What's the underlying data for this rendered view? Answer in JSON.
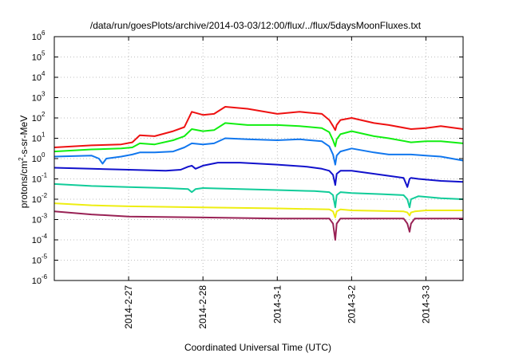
{
  "chart_data": {
    "type": "line",
    "title": "/data/run/goesPlots/archive/2014-03-03/12:00/flux/../flux/5daysMoonFluxes.txt",
    "xlabel": "Coordinated Universal Time (UTC)",
    "ylabel": {
      "base": "protons/cm",
      "sup": "2",
      "rest": "-s-sr-MeV"
    },
    "xlim": [
      0,
      5.5
    ],
    "ylim_log10": [
      -6,
      6
    ],
    "log_scale_y": true,
    "grid": true,
    "x_ticks": [
      {
        "x": 1,
        "label": "2014-2-27"
      },
      {
        "x": 2,
        "label": "2014-2-28"
      },
      {
        "x": 3,
        "label": "2014-3-1"
      },
      {
        "x": 4,
        "label": "2014-3-2"
      },
      {
        "x": 5,
        "label": "2014-3-3"
      }
    ],
    "y_ticks": [
      {
        "exp": 6,
        "label": "6"
      },
      {
        "exp": 5,
        "label": "5"
      },
      {
        "exp": 4,
        "label": "4"
      },
      {
        "exp": 3,
        "label": "3"
      },
      {
        "exp": 2,
        "label": "2"
      },
      {
        "exp": 1,
        "label": "1"
      },
      {
        "exp": 0,
        "label": "0"
      },
      {
        "exp": -1,
        "label": "-1"
      },
      {
        "exp": -2,
        "label": "-2"
      },
      {
        "exp": -3,
        "label": "-3"
      },
      {
        "exp": -4,
        "label": "-4"
      },
      {
        "exp": -5,
        "label": "-5"
      },
      {
        "exp": -6,
        "label": "-6"
      }
    ],
    "tick_base": "10",
    "series": [
      {
        "color": "#ee1111",
        "x": [
          0,
          0.5,
          0.9,
          1.05,
          1.15,
          1.35,
          1.6,
          1.75,
          1.85,
          2.0,
          2.15,
          2.3,
          2.6,
          3.0,
          3.3,
          3.6,
          3.7,
          3.75,
          3.78,
          3.8,
          3.85,
          4.0,
          4.3,
          4.5,
          4.8,
          5.0,
          5.2,
          5.5
        ],
        "log10": [
          0.55,
          0.65,
          0.7,
          0.8,
          1.15,
          1.1,
          1.35,
          1.55,
          2.3,
          2.15,
          2.2,
          2.55,
          2.45,
          2.2,
          2.3,
          2.2,
          1.9,
          1.6,
          1.4,
          1.65,
          1.9,
          2.0,
          1.75,
          1.65,
          1.45,
          1.5,
          1.6,
          1.45
        ]
      },
      {
        "color": "#11ee11",
        "x": [
          0,
          0.5,
          0.9,
          1.05,
          1.15,
          1.35,
          1.6,
          1.75,
          1.85,
          2.0,
          2.15,
          2.3,
          2.6,
          3.0,
          3.3,
          3.6,
          3.7,
          3.75,
          3.78,
          3.8,
          3.85,
          4.0,
          4.3,
          4.5,
          4.8,
          5.0,
          5.2,
          5.5
        ],
        "log10": [
          0.35,
          0.45,
          0.5,
          0.55,
          0.75,
          0.7,
          0.9,
          1.1,
          1.45,
          1.35,
          1.4,
          1.75,
          1.65,
          1.65,
          1.6,
          1.5,
          1.3,
          0.9,
          0.6,
          0.95,
          1.2,
          1.35,
          1.1,
          1.0,
          0.8,
          0.85,
          0.85,
          0.75
        ]
      },
      {
        "color": "#1177ee",
        "x": [
          0,
          0.5,
          0.6,
          0.65,
          0.7,
          0.9,
          1.05,
          1.15,
          1.35,
          1.6,
          1.75,
          1.85,
          2.0,
          2.15,
          2.3,
          2.6,
          3.0,
          3.3,
          3.6,
          3.7,
          3.75,
          3.78,
          3.8,
          3.85,
          4.0,
          4.3,
          4.5,
          4.8,
          5.0,
          5.2,
          5.5
        ],
        "log10": [
          0.1,
          0.15,
          0.0,
          -0.25,
          0.0,
          0.1,
          0.2,
          0.3,
          0.3,
          0.35,
          0.55,
          0.75,
          0.7,
          0.75,
          1.0,
          0.95,
          0.9,
          0.95,
          0.85,
          0.6,
          0.2,
          -0.3,
          0.15,
          0.35,
          0.5,
          0.3,
          0.2,
          0.2,
          0.15,
          0.1,
          -0.1
        ]
      },
      {
        "color": "#1111cc",
        "x": [
          0,
          0.5,
          1.0,
          1.5,
          1.7,
          1.8,
          1.85,
          1.9,
          2.0,
          2.2,
          2.5,
          3.0,
          3.4,
          3.6,
          3.7,
          3.75,
          3.78,
          3.8,
          3.85,
          4.0,
          4.4,
          4.7,
          4.75,
          4.78,
          4.8,
          4.9,
          5.2,
          5.5
        ],
        "log10": [
          -0.45,
          -0.5,
          -0.55,
          -0.6,
          -0.55,
          -0.4,
          -0.35,
          -0.5,
          -0.35,
          -0.2,
          -0.2,
          -0.3,
          -0.4,
          -0.5,
          -0.6,
          -0.8,
          -1.3,
          -0.75,
          -0.6,
          -0.6,
          -0.8,
          -0.95,
          -1.4,
          -1.0,
          -0.95,
          -1.0,
          -1.1,
          -1.15
        ]
      },
      {
        "color": "#11cc99",
        "x": [
          0,
          0.5,
          1.0,
          1.5,
          1.8,
          1.85,
          1.9,
          2.0,
          2.5,
          3.0,
          3.5,
          3.7,
          3.75,
          3.78,
          3.8,
          3.85,
          4.0,
          4.4,
          4.7,
          4.75,
          4.78,
          4.8,
          4.9,
          5.2,
          5.5
        ],
        "log10": [
          -1.25,
          -1.35,
          -1.4,
          -1.45,
          -1.5,
          -1.65,
          -1.5,
          -1.45,
          -1.5,
          -1.55,
          -1.6,
          -1.65,
          -1.8,
          -2.4,
          -1.8,
          -1.65,
          -1.7,
          -1.75,
          -1.8,
          -2.0,
          -2.4,
          -2.0,
          -1.85,
          -1.95,
          -2.0
        ]
      },
      {
        "color": "#eeee11",
        "x": [
          0,
          0.5,
          1.0,
          2.0,
          3.0,
          3.7,
          3.75,
          3.78,
          3.8,
          3.85,
          4.0,
          4.7,
          4.75,
          4.78,
          4.8,
          4.85,
          5.0,
          5.5
        ],
        "log10": [
          -2.2,
          -2.3,
          -2.35,
          -2.4,
          -2.45,
          -2.5,
          -2.6,
          -2.9,
          -2.6,
          -2.5,
          -2.55,
          -2.6,
          -2.65,
          -2.8,
          -2.65,
          -2.6,
          -2.55,
          -2.55
        ]
      },
      {
        "color": "#992255",
        "x": [
          0,
          0.5,
          1.0,
          2.0,
          3.0,
          3.7,
          3.75,
          3.78,
          3.8,
          3.85,
          4.0,
          4.7,
          4.75,
          4.78,
          4.8,
          4.85,
          5.0,
          5.5
        ],
        "log10": [
          -2.6,
          -2.75,
          -2.85,
          -2.9,
          -2.95,
          -2.95,
          -3.2,
          -4.0,
          -3.2,
          -2.95,
          -2.95,
          -2.95,
          -3.2,
          -3.6,
          -3.2,
          -2.95,
          -2.95,
          -2.95
        ]
      }
    ]
  }
}
